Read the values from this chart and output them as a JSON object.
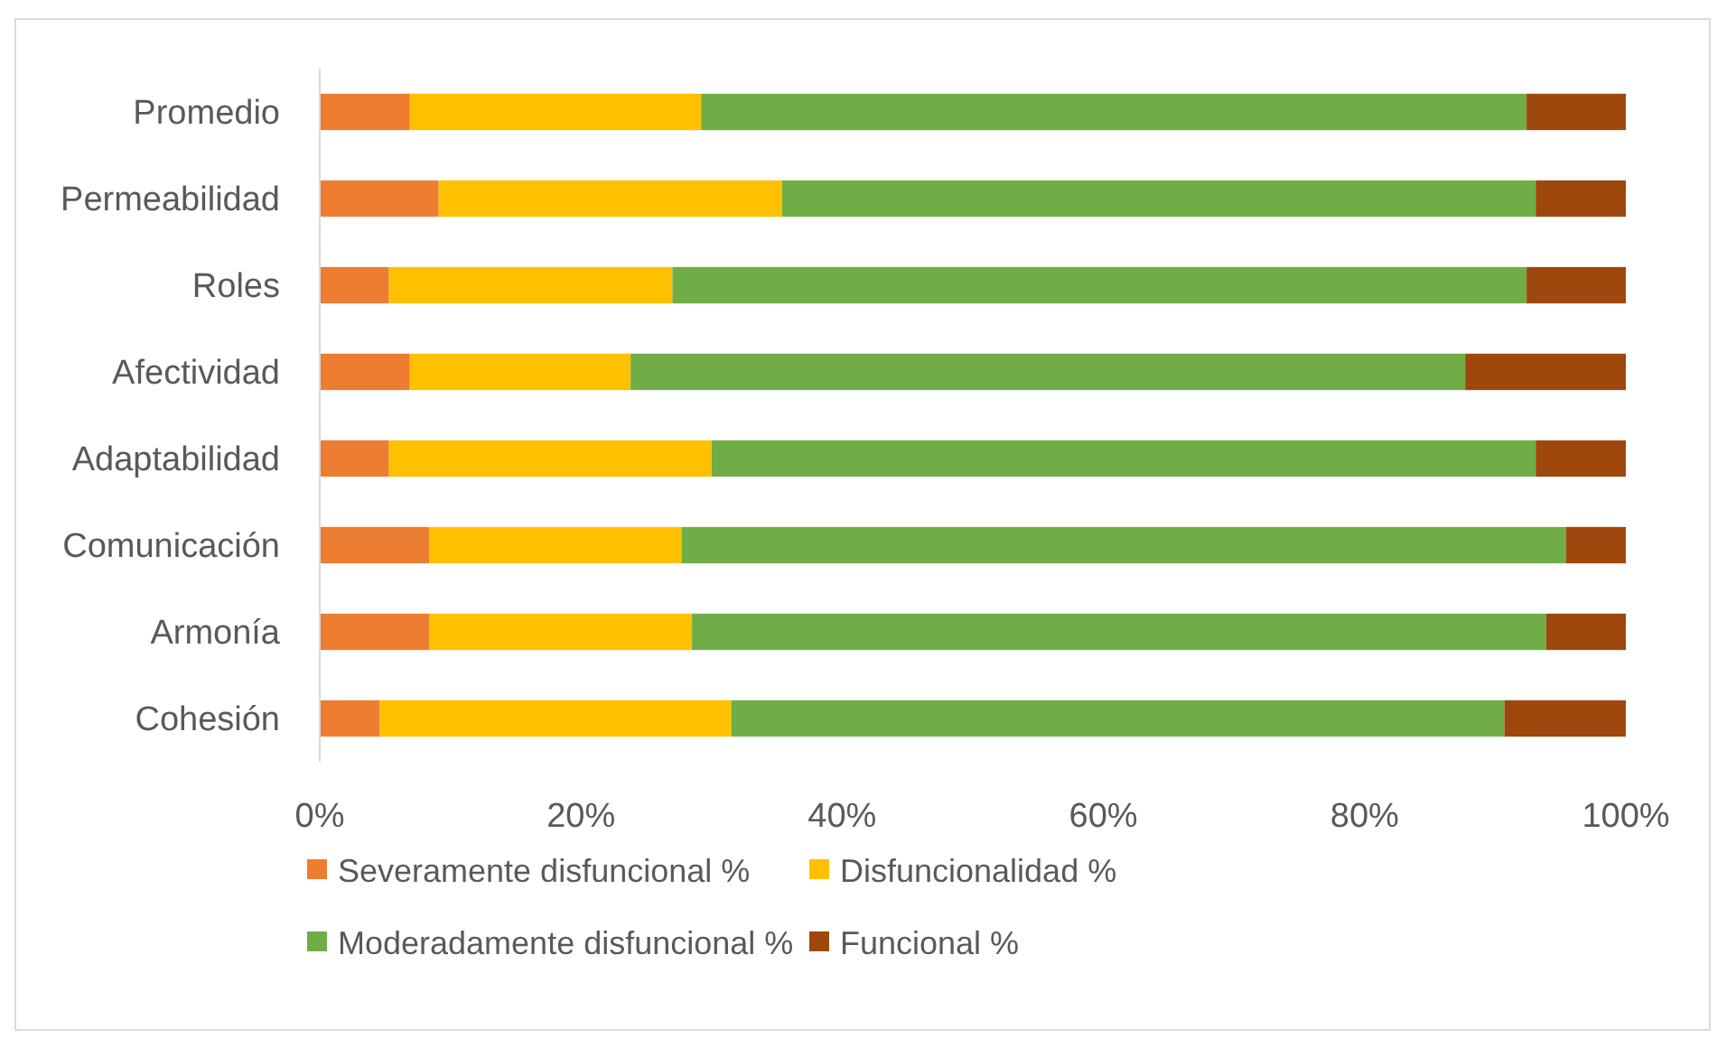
{
  "chart_data": {
    "type": "bar",
    "orientation": "horizontal",
    "stacked": true,
    "categories": [
      "Promedio",
      "Permeabilidad",
      "Roles",
      "Afectividad",
      "Adaptabilidad",
      "Comunicación",
      "Armonía",
      "Cohesión"
    ],
    "series": [
      {
        "name": "Severamente disfuncional %",
        "color": "#ed7d31",
        "values": [
          6.9,
          9.1,
          5.3,
          6.9,
          5.3,
          8.4,
          8.4,
          4.6
        ]
      },
      {
        "name": "Disfuncionalidad %",
        "color": "#ffc000",
        "values": [
          22.3,
          26.3,
          21.7,
          16.9,
          24.7,
          19.3,
          20.1,
          26.9
        ]
      },
      {
        "name": "Moderadamente disfuncional %",
        "color": "#70ad47",
        "values": [
          63.2,
          57.7,
          65.4,
          63.9,
          63.1,
          67.7,
          65.4,
          59.2
        ]
      },
      {
        "name": "Funcional %",
        "color": "#9e480e",
        "values": [
          7.6,
          6.9,
          7.6,
          12.3,
          6.9,
          4.6,
          6.1,
          9.3
        ]
      }
    ],
    "xlim": [
      0,
      100
    ],
    "xticks": [
      {
        "value": 0,
        "label": "0%"
      },
      {
        "value": 20,
        "label": "20%"
      },
      {
        "value": 40,
        "label": "40%"
      },
      {
        "value": 60,
        "label": "60%"
      },
      {
        "value": 80,
        "label": "80%"
      },
      {
        "value": 100,
        "label": "100%"
      }
    ],
    "legend": "bottom"
  }
}
